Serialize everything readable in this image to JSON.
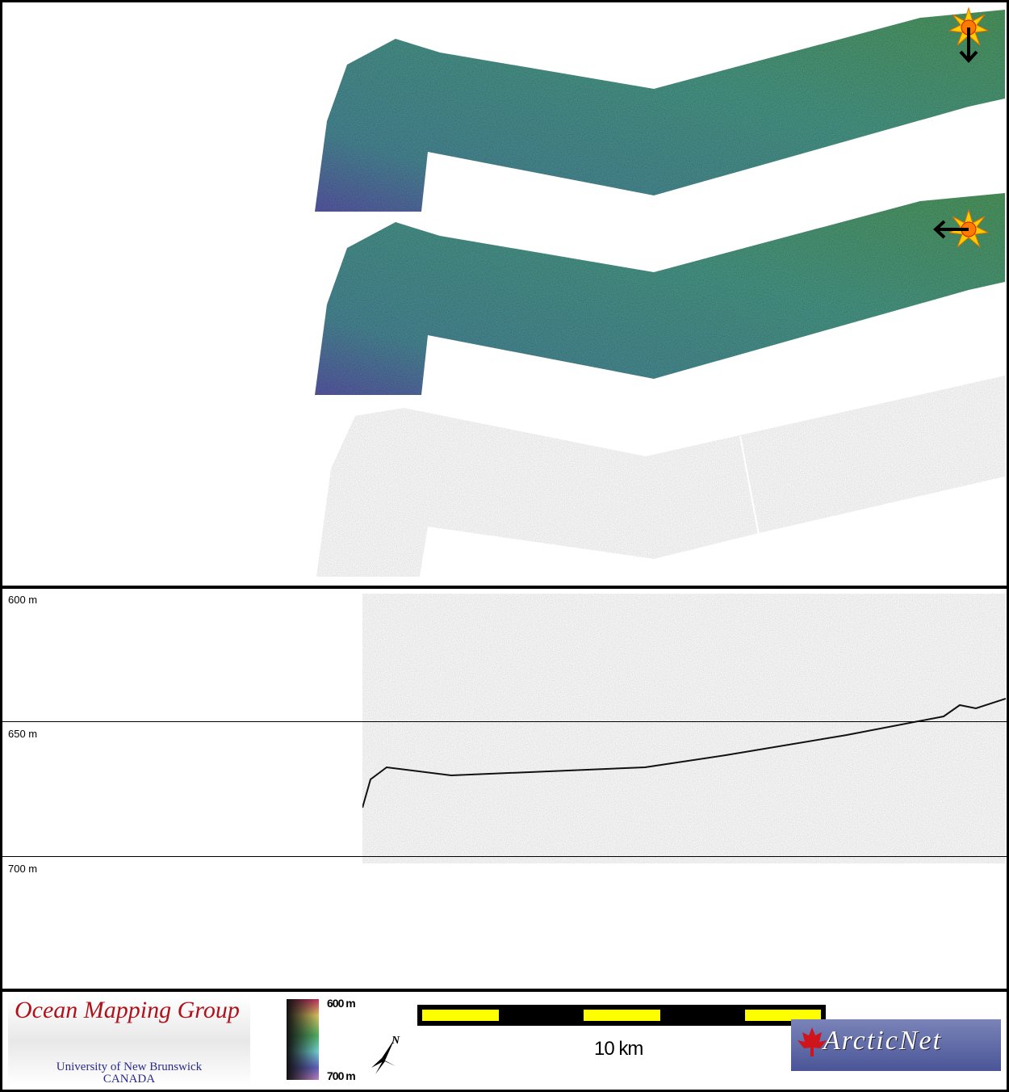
{
  "maps": {
    "panels": [
      "sun-illuminated-bathymetry-north",
      "sun-illuminated-bathymetry-east",
      "backscatter-mosaic"
    ],
    "sun_directions": [
      "south",
      "west"
    ]
  },
  "profile": {
    "depth_labels": [
      "600 m",
      "650 m",
      "700 m"
    ]
  },
  "footer": {
    "logo_title": "Ocean Mapping Group",
    "logo_line1": "University of New Brunswick",
    "logo_line2": "CANADA",
    "colorbar_top": "600 m",
    "colorbar_bottom": "700 m",
    "north_label": "N",
    "scale_label": "10 km",
    "partner_logo": "ArcticNet"
  },
  "colors": {
    "swath_top": "#4a9a88",
    "swath_bottom": "#5a60a8",
    "scale_yellow": "#ffff00",
    "logo_red": "#b0121b"
  }
}
